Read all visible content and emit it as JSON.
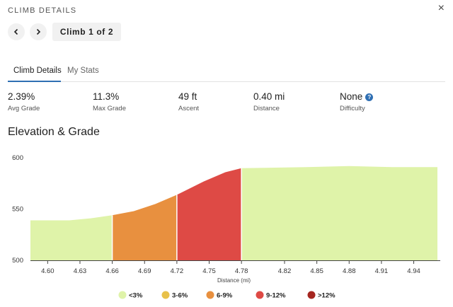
{
  "header": {
    "title": "CLIMB DETAILS",
    "close_glyph": "×"
  },
  "navigation": {
    "prev_icon": "chevron-left-icon",
    "next_icon": "chevron-right-icon",
    "climb_label": "Climb 1 of 2"
  },
  "tabs": [
    {
      "label": "Climb Details",
      "active": true
    },
    {
      "label": "My Stats",
      "active": false
    }
  ],
  "stats": [
    {
      "value": "2.39%",
      "label": "Avg Grade"
    },
    {
      "value": "11.3%",
      "label": "Max Grade"
    },
    {
      "value": "49 ft",
      "label": "Ascent"
    },
    {
      "value": "0.40 mi",
      "label": "Distance"
    },
    {
      "value": "None",
      "label": "Difficulty",
      "help_glyph": "?"
    }
  ],
  "section_title": "Elevation & Grade",
  "colors": {
    "accent": "#2f6fb3",
    "grade_lt3": "#dff3a9",
    "grade_3_6": "#e8c14a",
    "grade_6_9": "#e8903f",
    "grade_9_12": "#de4a45",
    "grade_gt12": "#a52620"
  },
  "chart_data": {
    "type": "area",
    "xlabel": "Distance (mi)",
    "ylabel": "",
    "xlim": [
      4.584,
      4.962
    ],
    "ylim": [
      500,
      605
    ],
    "x_ticks": [
      "4.60",
      "4.63",
      "4.66",
      "4.69",
      "4.72",
      "4.75",
      "4.78",
      "4.82",
      "4.85",
      "4.88",
      "4.91",
      "4.94"
    ],
    "y_ticks": [
      "600",
      "550",
      "500"
    ],
    "profile": [
      {
        "x": 4.584,
        "y": 539
      },
      {
        "x": 4.62,
        "y": 539
      },
      {
        "x": 4.64,
        "y": 541
      },
      {
        "x": 4.66,
        "y": 544
      },
      {
        "x": 4.68,
        "y": 548
      },
      {
        "x": 4.7,
        "y": 555
      },
      {
        "x": 4.72,
        "y": 564
      },
      {
        "x": 4.745,
        "y": 577
      },
      {
        "x": 4.765,
        "y": 586
      },
      {
        "x": 4.78,
        "y": 590
      },
      {
        "x": 4.84,
        "y": 591
      },
      {
        "x": 4.88,
        "y": 592
      },
      {
        "x": 4.92,
        "y": 591
      },
      {
        "x": 4.962,
        "y": 591
      }
    ],
    "segments": [
      {
        "from": 4.584,
        "to": 4.66,
        "grade": "<3%"
      },
      {
        "from": 4.66,
        "to": 4.72,
        "grade": "6-9%"
      },
      {
        "from": 4.72,
        "to": 4.78,
        "grade": "9-12%"
      },
      {
        "from": 4.78,
        "to": 4.962,
        "grade": "<3%"
      }
    ],
    "legend": [
      {
        "label": "<3%",
        "color": "#dff3a9"
      },
      {
        "label": "3-6%",
        "color": "#e8c14a"
      },
      {
        "label": "6-9%",
        "color": "#e8903f"
      },
      {
        "label": "9-12%",
        "color": "#de4a45"
      },
      {
        "label": ">12%",
        "color": "#a52620"
      }
    ],
    "legend_position": "bottom-center",
    "grid": false
  }
}
